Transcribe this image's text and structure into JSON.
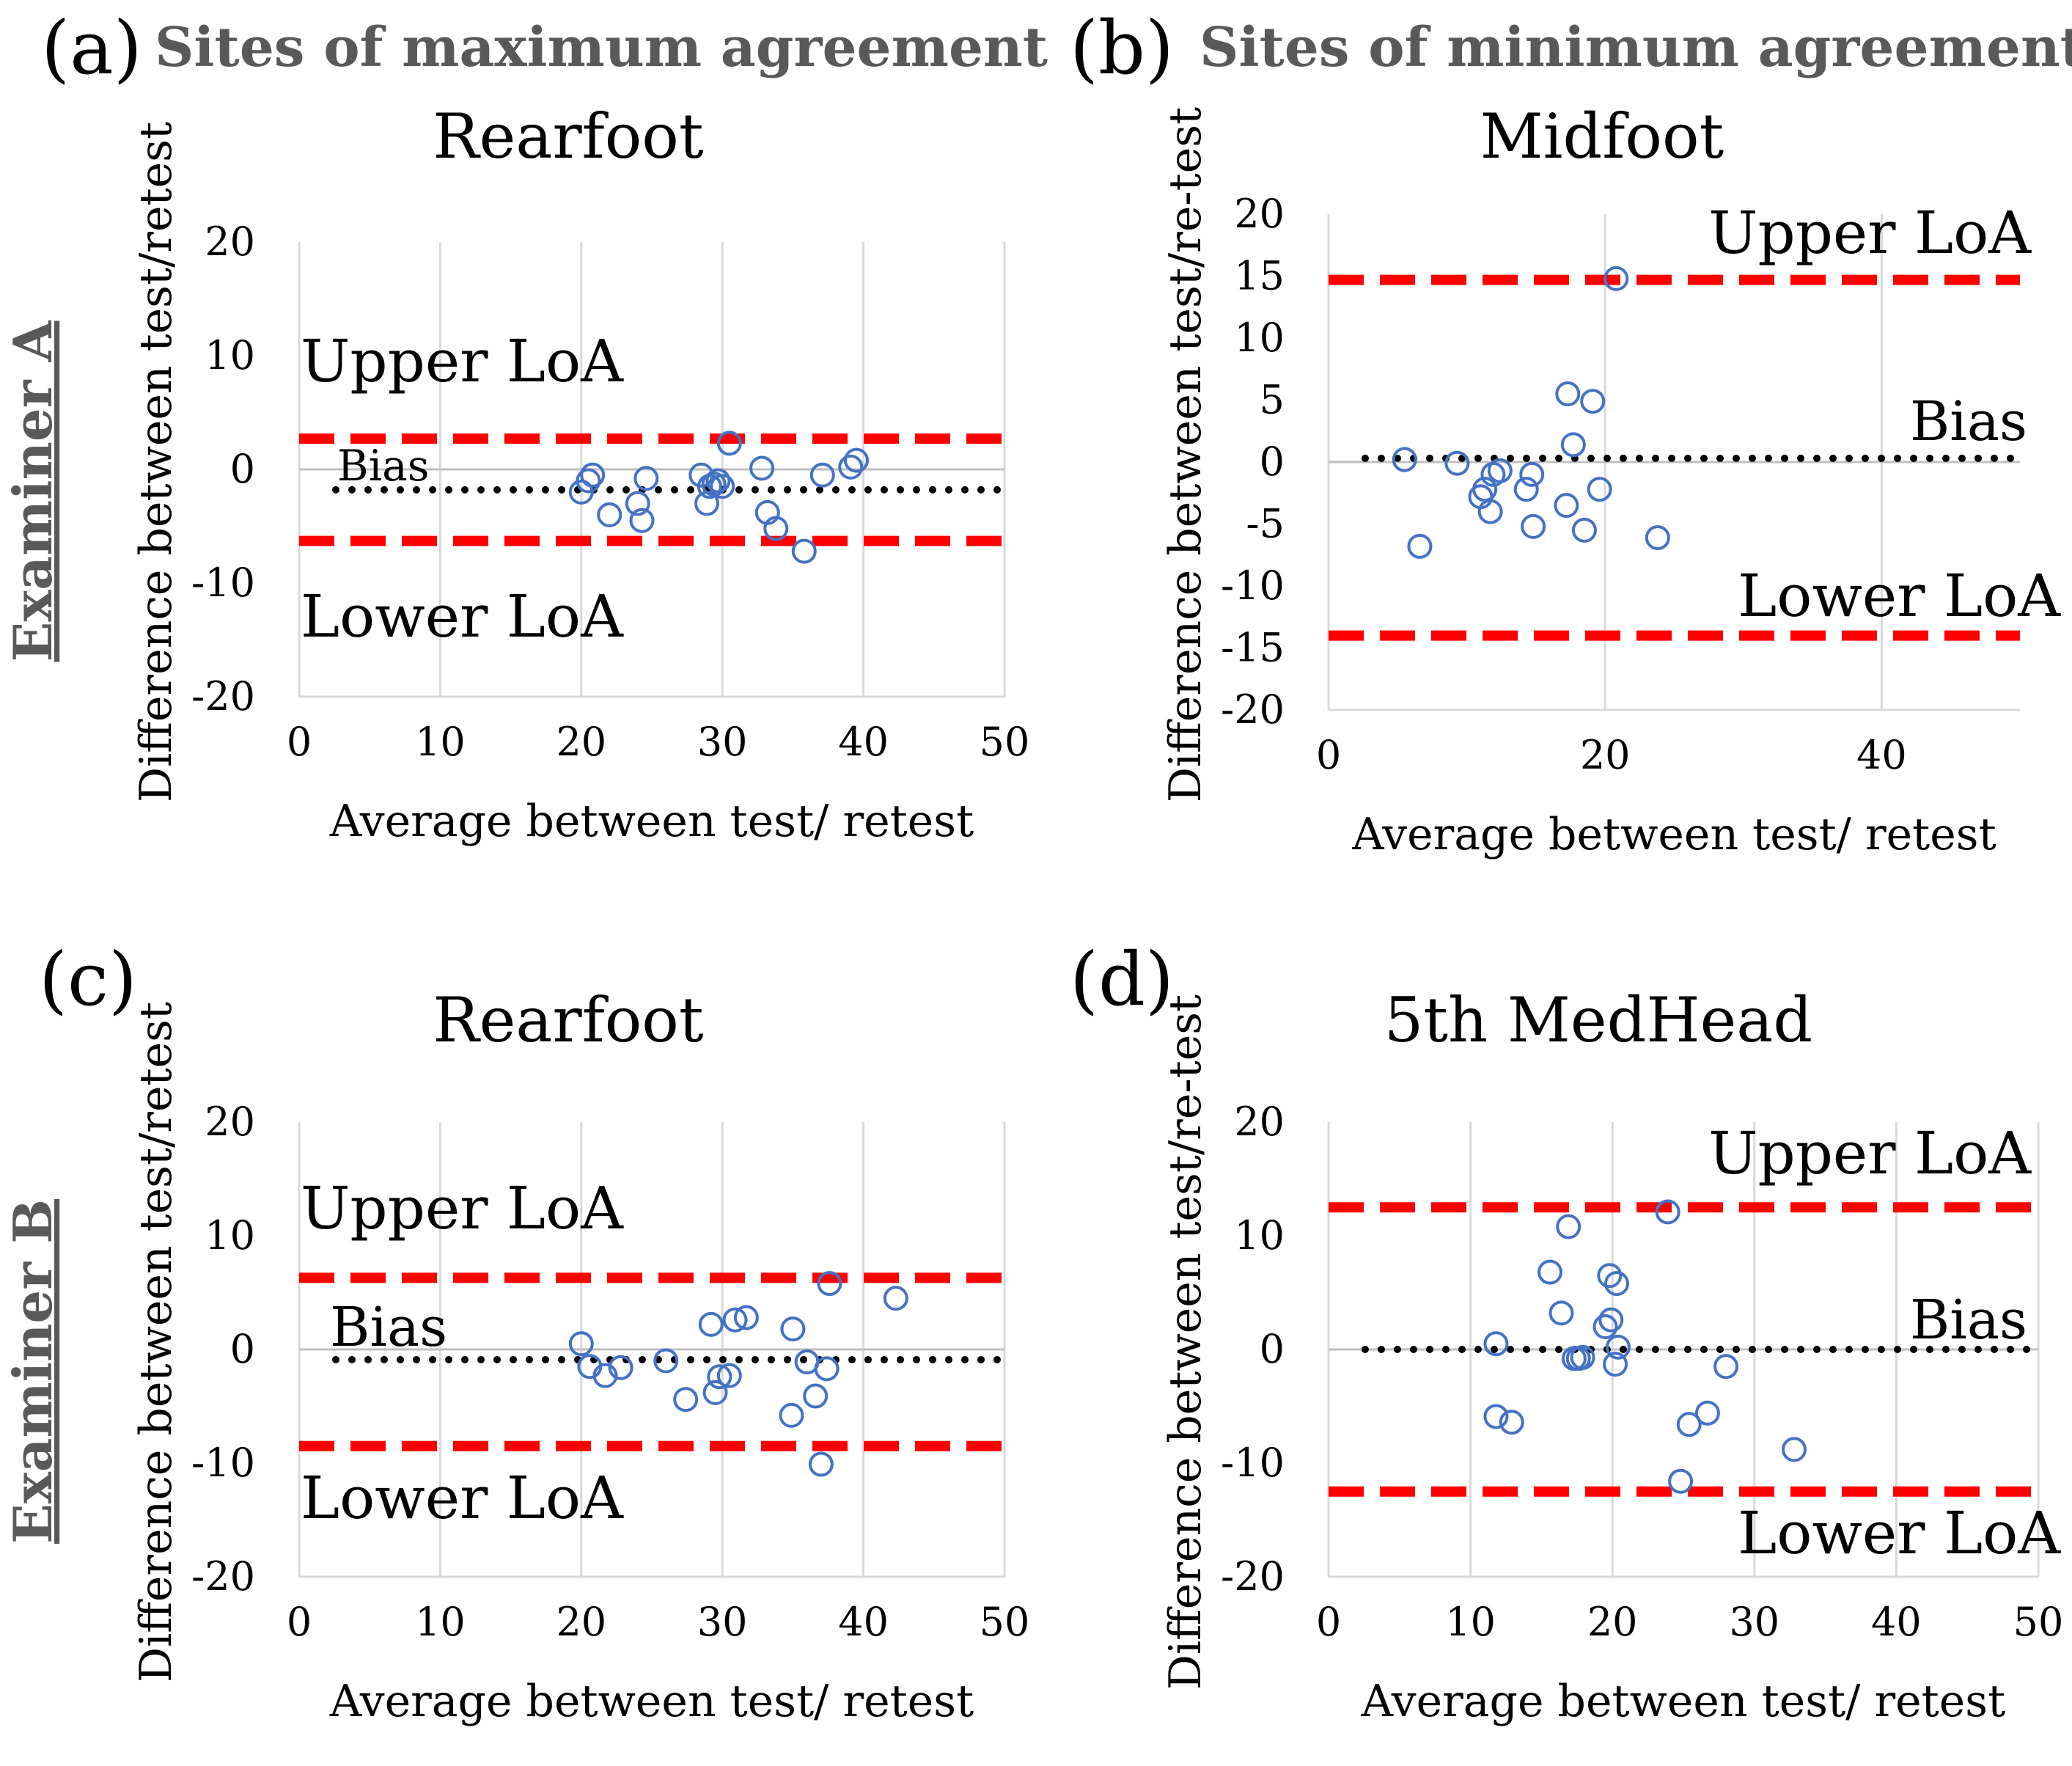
{
  "headers": {
    "left": "Sites of maximum agreement",
    "right": "Sites of minimum agreement"
  },
  "row_labels": {
    "top": "Examiner A",
    "bottom": "Examiner B"
  },
  "colors": {
    "point": "#4472C4",
    "loa": "#FF0000",
    "bias": "#000000",
    "grid": "#D9D9D9",
    "header": "#595959",
    "row_label": "#595959"
  },
  "chart_data": [
    {
      "panel": "(a)",
      "type": "scatter",
      "title": "Rearfoot",
      "xlabel": "Average between test/ retest",
      "ylabel": "Difference between test/retest",
      "xlim": [
        0,
        50
      ],
      "ylim": [
        -20,
        20
      ],
      "xticks": [
        0,
        10,
        20,
        30,
        40,
        50
      ],
      "yticks": [
        -20,
        -10,
        0,
        10,
        20
      ],
      "grid": "vertical",
      "upper_loa": 2.7,
      "bias": -1.8,
      "lower_loa": -6.3,
      "labels": {
        "upper": "Upper LoA",
        "bias": "Bias",
        "lower": "Lower LoA"
      },
      "points": [
        [
          20.0,
          -2.0
        ],
        [
          20.5,
          -1.0
        ],
        [
          20.8,
          -0.5
        ],
        [
          22.0,
          -4.0
        ],
        [
          24.0,
          -3.0
        ],
        [
          24.3,
          -4.5
        ],
        [
          24.6,
          -0.8
        ],
        [
          28.5,
          -0.5
        ],
        [
          28.9,
          -3.0
        ],
        [
          29.1,
          -1.5
        ],
        [
          29.4,
          -1.3
        ],
        [
          29.7,
          -1.0
        ],
        [
          30.0,
          -1.5
        ],
        [
          30.5,
          2.3
        ],
        [
          32.8,
          0.1
        ],
        [
          33.2,
          -3.8
        ],
        [
          33.8,
          -5.2
        ],
        [
          35.8,
          -7.2
        ],
        [
          37.1,
          -0.5
        ],
        [
          39.1,
          0.2
        ],
        [
          39.5,
          0.8
        ]
      ]
    },
    {
      "panel": "(b)",
      "type": "scatter",
      "title": "Midfoot",
      "xlabel": "Average between test/ retest",
      "ylabel": "Difference between test/re-test",
      "xlim": [
        0,
        50
      ],
      "ylim": [
        -20,
        20
      ],
      "xticks": [
        0,
        20,
        40
      ],
      "yticks": [
        -20,
        -15,
        -10,
        -5,
        0,
        5,
        10,
        15,
        20
      ],
      "grid": "vertical",
      "upper_loa": 14.7,
      "bias": 0.3,
      "lower_loa": -14.0,
      "labels": {
        "upper": "Upper LoA",
        "bias": "Bias",
        "lower": "Lower LoA"
      },
      "points": [
        [
          5.5,
          0.2
        ],
        [
          6.6,
          -6.8
        ],
        [
          9.3,
          -0.1
        ],
        [
          11.0,
          -2.8
        ],
        [
          11.3,
          -2.2
        ],
        [
          11.7,
          -4.0
        ],
        [
          11.9,
          -1.0
        ],
        [
          12.4,
          -0.7
        ],
        [
          14.3,
          -2.2
        ],
        [
          14.7,
          -1.0
        ],
        [
          14.8,
          -5.2
        ],
        [
          17.2,
          -3.5
        ],
        [
          17.3,
          5.5
        ],
        [
          17.7,
          1.4
        ],
        [
          18.5,
          -5.5
        ],
        [
          19.1,
          4.9
        ],
        [
          19.6,
          -2.2
        ],
        [
          20.8,
          14.8
        ],
        [
          23.8,
          -6.1
        ]
      ]
    },
    {
      "panel": "(c)",
      "type": "scatter",
      "title": "Rearfoot",
      "xlabel": "Average between test/ retest",
      "ylabel": "Difference between test/retest",
      "xlim": [
        0,
        50
      ],
      "ylim": [
        -20,
        20
      ],
      "xticks": [
        0,
        10,
        20,
        30,
        40,
        50
      ],
      "yticks": [
        -20,
        -10,
        0,
        10,
        20
      ],
      "grid": "vertical",
      "upper_loa": 6.3,
      "bias": -0.9,
      "lower_loa": -8.5,
      "labels": {
        "upper": "Upper LoA",
        "bias": "Bias",
        "lower": "Lower LoA"
      },
      "points": [
        [
          20.0,
          0.5
        ],
        [
          20.6,
          -1.5
        ],
        [
          21.7,
          -2.3
        ],
        [
          22.8,
          -1.6
        ],
        [
          26.0,
          -1.0
        ],
        [
          27.4,
          -4.4
        ],
        [
          29.2,
          2.2
        ],
        [
          29.5,
          -3.8
        ],
        [
          29.8,
          -2.4
        ],
        [
          30.5,
          -2.3
        ],
        [
          30.9,
          2.6
        ],
        [
          31.7,
          2.8
        ],
        [
          34.9,
          -5.8
        ],
        [
          35.0,
          1.8
        ],
        [
          36.0,
          -1.1
        ],
        [
          36.6,
          -4.1
        ],
        [
          37.0,
          -10.1
        ],
        [
          37.4,
          -1.7
        ],
        [
          37.6,
          5.8
        ],
        [
          42.3,
          4.5
        ]
      ]
    },
    {
      "panel": "(d)",
      "type": "scatter",
      "title": "5th MedHead",
      "xlabel": "Average between test/ retest",
      "ylabel": "Difference between test/re-test",
      "xlim": [
        0,
        50
      ],
      "ylim": [
        -20,
        20
      ],
      "xticks": [
        0,
        10,
        20,
        30,
        40,
        50
      ],
      "yticks": [
        -20,
        -10,
        0,
        10,
        20
      ],
      "grid": "vertical",
      "upper_loa": 12.5,
      "bias": 0.0,
      "lower_loa": -12.5,
      "labels": {
        "upper": "Upper LoA",
        "bias": "Bias",
        "lower": "Lower LoA"
      },
      "points": [
        [
          11.8,
          0.5
        ],
        [
          11.8,
          -5.9
        ],
        [
          12.9,
          -6.4
        ],
        [
          15.6,
          6.8
        ],
        [
          16.4,
          3.2
        ],
        [
          16.9,
          10.8
        ],
        [
          17.3,
          -0.8
        ],
        [
          17.6,
          -0.8
        ],
        [
          17.9,
          -0.7
        ],
        [
          19.5,
          2.0
        ],
        [
          19.8,
          6.5
        ],
        [
          19.9,
          2.6
        ],
        [
          20.2,
          -1.3
        ],
        [
          20.3,
          5.8
        ],
        [
          20.4,
          0.2
        ],
        [
          23.9,
          12.1
        ],
        [
          24.8,
          -11.6
        ],
        [
          25.4,
          -6.6
        ],
        [
          26.7,
          -5.6
        ],
        [
          28.0,
          -1.5
        ],
        [
          32.8,
          -8.8
        ]
      ]
    }
  ]
}
